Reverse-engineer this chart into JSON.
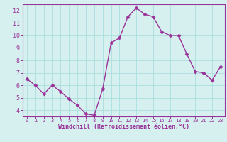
{
  "x": [
    0,
    1,
    2,
    3,
    4,
    5,
    6,
    7,
    8,
    9,
    10,
    11,
    12,
    13,
    14,
    15,
    16,
    17,
    18,
    19,
    20,
    21,
    22,
    23
  ],
  "y": [
    6.5,
    6.0,
    5.3,
    6.0,
    5.5,
    4.9,
    4.4,
    3.7,
    3.6,
    5.7,
    9.4,
    9.8,
    11.5,
    12.2,
    11.7,
    11.5,
    10.3,
    10.0,
    10.0,
    8.5,
    7.1,
    7.0,
    6.4,
    7.5
  ],
  "line_color": "#993399",
  "marker": "D",
  "marker_size": 2.5,
  "bg_color": "#d6f0f0",
  "grid_color": "#aadddd",
  "xlabel": "Windchill (Refroidissement éolien,°C)",
  "xlabel_color": "#993399",
  "tick_color": "#993399",
  "ylim": [
    3.5,
    12.5
  ],
  "xlim": [
    -0.5,
    23.5
  ],
  "yticks": [
    4,
    5,
    6,
    7,
    8,
    9,
    10,
    11,
    12
  ],
  "xticks": [
    0,
    1,
    2,
    3,
    4,
    5,
    6,
    7,
    8,
    9,
    10,
    11,
    12,
    13,
    14,
    15,
    16,
    17,
    18,
    19,
    20,
    21,
    22,
    23
  ],
  "spine_color": "#993399",
  "linewidth": 1.0,
  "figsize": [
    3.2,
    2.0
  ],
  "dpi": 100
}
